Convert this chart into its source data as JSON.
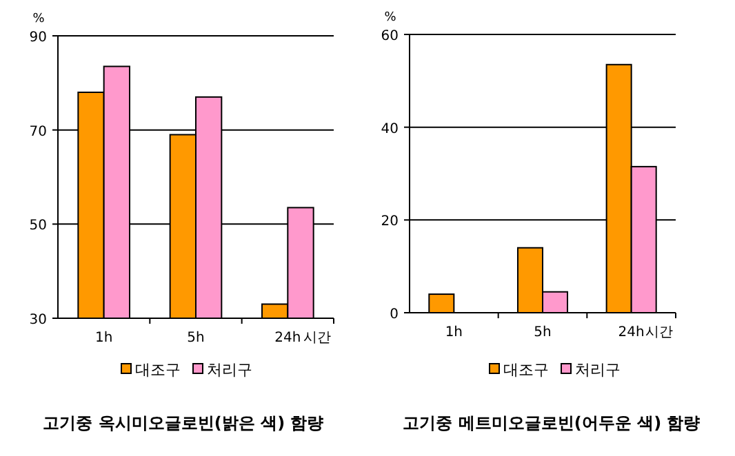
{
  "chart_data": [
    {
      "type": "bar",
      "title": "고기중 옥시미오글로빈(밝은 색) 함량",
      "ylabel": "%",
      "xlabel": "시간",
      "categories": [
        "1h",
        "5h",
        "24h"
      ],
      "series": [
        {
          "name": "대조구",
          "color": "#ff9900",
          "values": [
            78,
            69,
            33
          ]
        },
        {
          "name": "처리구",
          "color": "#ff99cc",
          "values": [
            83.5,
            77,
            53.5
          ]
        }
      ],
      "ylim": [
        30,
        90
      ],
      "yticks": [
        30,
        50,
        70,
        90
      ],
      "grid": "y",
      "legend": "bottom"
    },
    {
      "type": "bar",
      "title": "고기중 메트미오글로빈(어두운 색) 함량",
      "ylabel": "%",
      "xlabel": "시간",
      "categories": [
        "1h",
        "5h",
        "24h"
      ],
      "series": [
        {
          "name": "대조구",
          "color": "#ff9900",
          "values": [
            4,
            14,
            53.5
          ]
        },
        {
          "name": "처리구",
          "color": "#ff99cc",
          "values": [
            0,
            4.5,
            31.5
          ]
        }
      ],
      "ylim": [
        0,
        60
      ],
      "yticks": [
        0,
        20,
        40,
        60
      ],
      "grid": "y",
      "legend": "bottom"
    }
  ]
}
